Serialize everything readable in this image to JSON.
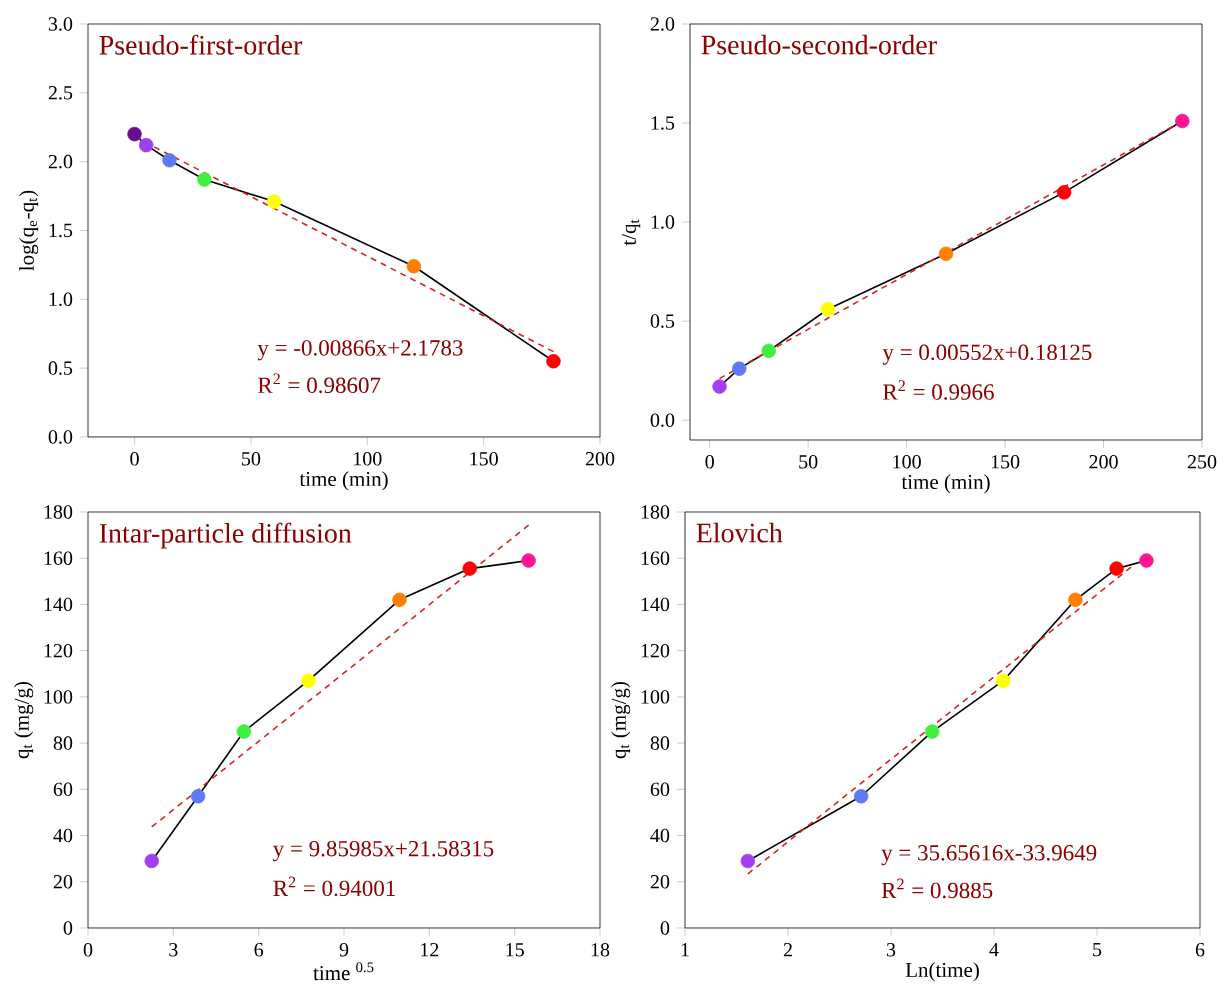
{
  "chart_data": [
    {
      "type": "line",
      "title": "Pseudo-first-order",
      "xlabel": "time (min)",
      "ylabel": "log(q$_{e}$-q$_{t}$)",
      "xlim": [
        -20,
        200
      ],
      "xticks": [
        0,
        50,
        100,
        150,
        200
      ],
      "ylim": [
        0,
        3
      ],
      "yticks": [
        {
          "value": 0,
          "label": "0.0"
        },
        {
          "value": 0.5,
          "label": "0.5"
        },
        {
          "value": 1,
          "label": "1.0"
        },
        {
          "value": 1.5,
          "label": "1.5"
        },
        {
          "value": 2,
          "label": "2.0"
        },
        {
          "value": 2.5,
          "label": "2.5"
        },
        {
          "value": 3,
          "label": "3.0"
        }
      ],
      "annotations": [
        "y = -0.00866x+2.1783",
        "R$^{2}$ = 0.98607"
      ],
      "series": [
        {
          "color": "#000000",
          "marker": "circle",
          "x": [
            0,
            5,
            15,
            30,
            60,
            120,
            180
          ],
          "values": [
            2.2,
            2.12,
            2.01,
            1.87,
            1.71,
            1.24,
            0.55
          ],
          "colors": [
            "#6a0d91",
            "#a040f0",
            "#5f7af5",
            "#40f040",
            "#ffff00",
            "#ff8000",
            "#ff0000"
          ]
        },
        {
          "color": "#dd2222",
          "line_style": "dashed",
          "x": [
            0,
            180
          ],
          "values": [
            2.18,
            0.62
          ]
        }
      ]
    },
    {
      "type": "line",
      "title": "Pseudo-second-order",
      "xlabel": "time (min)",
      "ylabel": "t/q$_{t}$",
      "xlim": [
        -10,
        250
      ],
      "xticks": [
        0,
        50,
        100,
        150,
        200,
        250
      ],
      "ylim": [
        -0.1,
        2.0
      ],
      "yticks": [
        {
          "value": 0,
          "label": "0.0"
        },
        {
          "value": 0.5,
          "label": "0.5"
        },
        {
          "value": 1,
          "label": "1.0"
        },
        {
          "value": 1.5,
          "label": "1.5"
        },
        {
          "value": 2,
          "label": "2.0"
        }
      ],
      "annotations": [
        "y = 0.00552x+0.18125",
        "R$^{2}$ = 0.9966"
      ],
      "series": [
        {
          "color": "#000000",
          "marker": "circle",
          "x": [
            5,
            15,
            30,
            60,
            120,
            180,
            240
          ],
          "values": [
            0.17,
            0.26,
            0.35,
            0.56,
            0.84,
            1.15,
            1.51
          ],
          "colors": [
            "#a040f0",
            "#5f7af5",
            "#40f040",
            "#ffff00",
            "#ff8000",
            "#ff0000",
            "#ff1493"
          ]
        },
        {
          "color": "#dd2222",
          "line_style": "dashed",
          "x": [
            5,
            240
          ],
          "values": [
            0.21,
            1.51
          ]
        }
      ]
    },
    {
      "type": "line",
      "title": "Intar-particle diffusion",
      "xlabel": "time $^{0.5}$",
      "ylabel": "q$_{t}$ (mg/g)",
      "xlim": [
        0,
        18
      ],
      "xticks": [
        0,
        3,
        6,
        9,
        12,
        15,
        18
      ],
      "ylim": [
        0,
        180
      ],
      "yticks": [
        0,
        20,
        40,
        60,
        80,
        100,
        120,
        140,
        160,
        180
      ],
      "annotations": [
        "y = 9.85985x+21.58315",
        "R$^{2}$ = 0.94001"
      ],
      "series": [
        {
          "color": "#000000",
          "marker": "circle",
          "x": [
            2.24,
            3.87,
            5.48,
            7.75,
            10.95,
            13.42,
            15.49
          ],
          "values": [
            29,
            57,
            85,
            107,
            142,
            155.5,
            159
          ],
          "colors": [
            "#a040f0",
            "#5f7af5",
            "#40f040",
            "#ffff00",
            "#ff8000",
            "#ff0000",
            "#ff1493"
          ]
        },
        {
          "color": "#dd2222",
          "line_style": "dashed",
          "x": [
            2.24,
            15.49
          ],
          "values": [
            43.7,
            174.3
          ]
        }
      ]
    },
    {
      "type": "line",
      "title": "Elovich",
      "xlabel": "Ln(time)",
      "ylabel": "q$_{t}$ (mg/g)",
      "xlim": [
        1,
        6
      ],
      "xticks": [
        1,
        2,
        3,
        4,
        5,
        6
      ],
      "ylim": [
        0,
        180
      ],
      "yticks": [
        0,
        20,
        40,
        60,
        80,
        100,
        120,
        140,
        160,
        180
      ],
      "annotations": [
        "y = 35.65616x-33.9649",
        "R$^{2}$ = 0.9885"
      ],
      "series": [
        {
          "color": "#000000",
          "marker": "circle",
          "x": [
            1.61,
            2.71,
            3.4,
            4.09,
            4.79,
            5.19,
            5.48
          ],
          "values": [
            29,
            57,
            85,
            107,
            142,
            155.5,
            159
          ],
          "colors": [
            "#a040f0",
            "#5f7af5",
            "#40f040",
            "#ffff00",
            "#ff8000",
            "#ff0000",
            "#ff1493"
          ]
        },
        {
          "color": "#dd2222",
          "line_style": "dashed",
          "x": [
            1.61,
            5.33
          ],
          "values": [
            23.4,
            156.1
          ]
        }
      ]
    }
  ]
}
